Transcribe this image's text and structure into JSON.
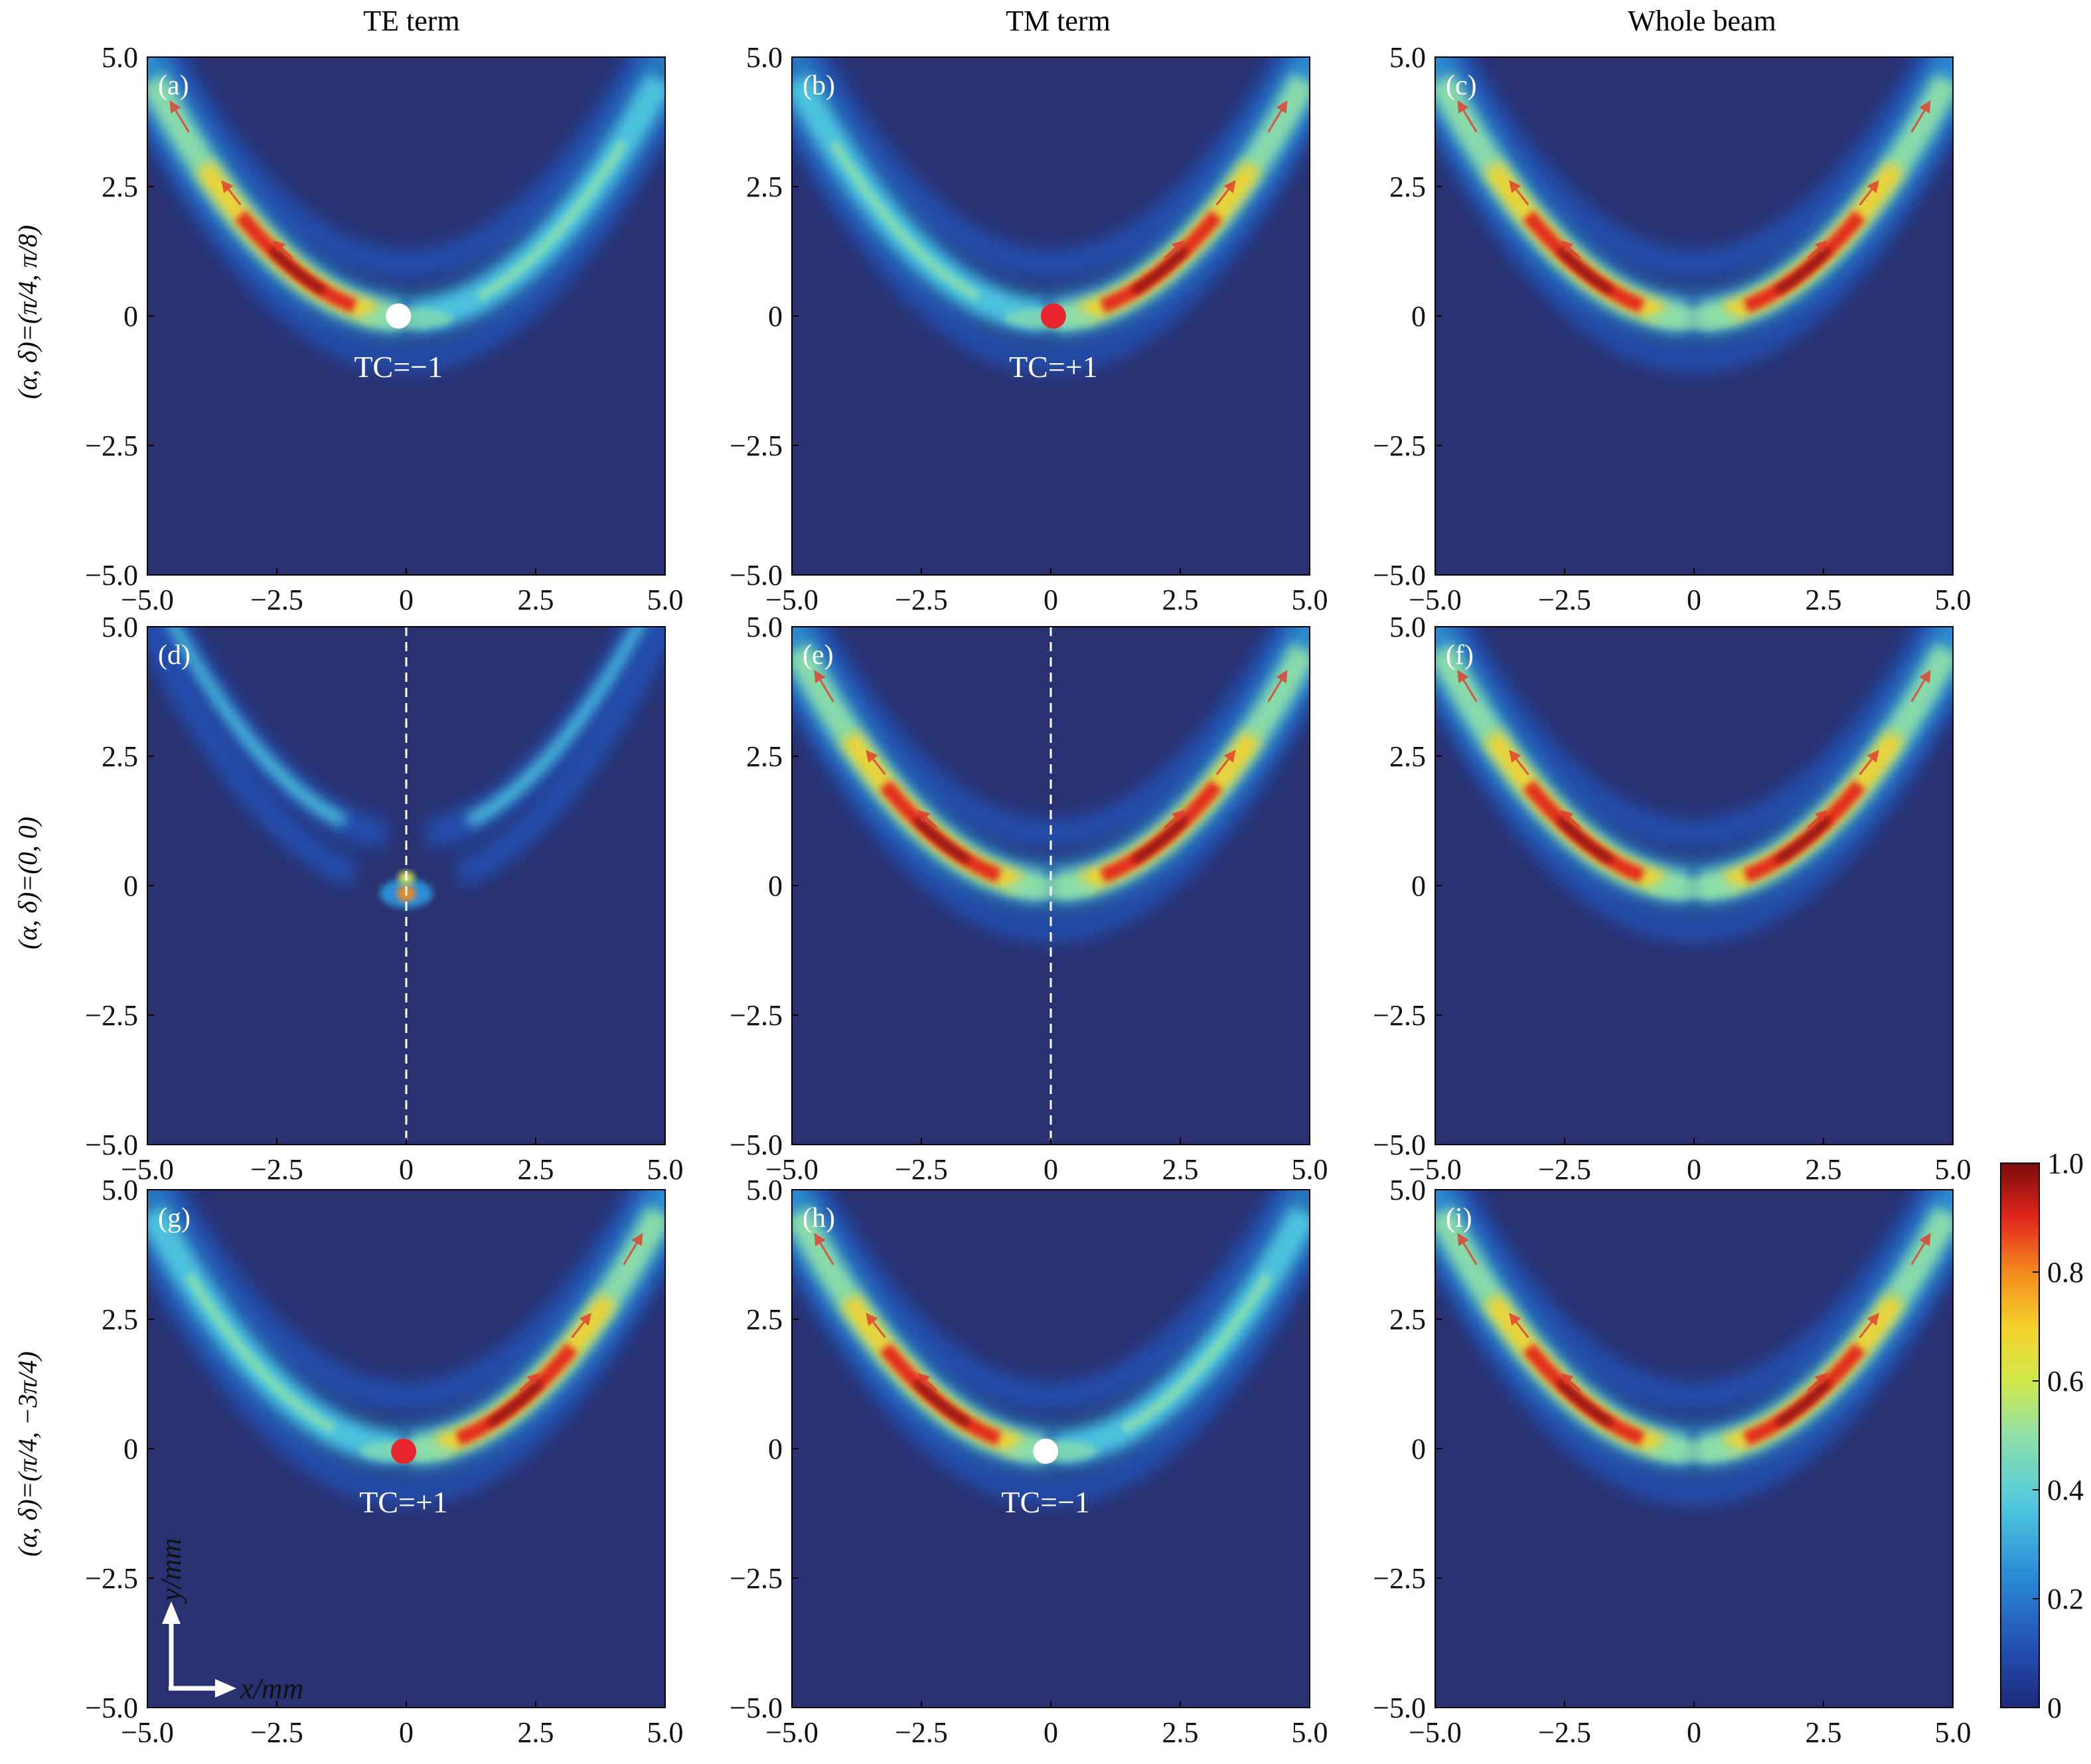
{
  "figure": {
    "column_titles": [
      "TE term",
      "TM term",
      "Whole beam"
    ],
    "row_labels": [
      "(α, δ)=(π/4, π/8)",
      "(α, δ)=(0, 0)",
      "(α, δ)=(π/4, −3π/4)"
    ],
    "axis_hint": {
      "x": "x/mm",
      "y": "y/mm"
    },
    "colors": {
      "background_field": "#2a3170",
      "frame": "#000000",
      "arrow": "#e4392a",
      "marker_red": "#e8242c",
      "marker_white": "#ffffff",
      "dashed_line": "#ffffff",
      "colormap": [
        "#1c2a78",
        "#2453b8",
        "#2a8fd6",
        "#4fc7e0",
        "#8fe0a8",
        "#d2e84a",
        "#f6d229",
        "#f4891f",
        "#e2261c",
        "#7a0c0c"
      ]
    }
  },
  "chart_data": [
    {
      "id": "a",
      "panel_label": "(a)",
      "type": "heatmap",
      "column": "TE term",
      "row": "(α, δ)=(π/4, π/8)",
      "xlim": [
        -5.0,
        5.0
      ],
      "ylim": [
        -5.0,
        5.0
      ],
      "xticks": [
        "−5.0",
        "−2.5",
        "0",
        "2.5",
        "5.0"
      ],
      "yticks": [
        "−5.0",
        "−2.5",
        "0",
        "2.5",
        "5.0"
      ],
      "colorbar_range": [
        0,
        1.0
      ],
      "weights": {
        "left": 1.0,
        "right": 0.45
      },
      "peak": {
        "x": -2.0,
        "y": 0.8
      },
      "singularity": {
        "x": -0.15,
        "y": 0.0,
        "tc": -1,
        "label": "TC=−1",
        "color": "white"
      },
      "dashed_line_x": null
    },
    {
      "id": "b",
      "panel_label": "(b)",
      "type": "heatmap",
      "column": "TM term",
      "row": "(α, δ)=(π/4, π/8)",
      "xlim": [
        -5.0,
        5.0
      ],
      "ylim": [
        -5.0,
        5.0
      ],
      "xticks": [
        "−5.0",
        "−2.5",
        "0",
        "2.5",
        "5.0"
      ],
      "yticks": [
        "−5.0",
        "−2.5",
        "0",
        "2.5",
        "5.0"
      ],
      "colorbar_range": [
        0,
        1.0
      ],
      "weights": {
        "left": 0.45,
        "right": 1.0
      },
      "peak": {
        "x": 2.0,
        "y": 0.8
      },
      "singularity": {
        "x": 0.05,
        "y": 0.0,
        "tc": 1,
        "label": "TC=+1",
        "color": "red"
      },
      "dashed_line_x": null
    },
    {
      "id": "c",
      "panel_label": "(c)",
      "type": "heatmap",
      "column": "Whole beam",
      "row": "(α, δ)=(π/4, π/8)",
      "xlim": [
        -5.0,
        5.0
      ],
      "ylim": [
        -5.0,
        5.0
      ],
      "xticks": [
        "−5.0",
        "−2.5",
        "0",
        "2.5",
        "5.0"
      ],
      "yticks": [
        "−5.0",
        "−2.5",
        "0",
        "2.5",
        "5.0"
      ],
      "colorbar_range": [
        0,
        1.0
      ],
      "weights": {
        "left": 1.0,
        "right": 1.0
      },
      "peak": {
        "x": -2.0,
        "y": 0.8
      },
      "singularity": null,
      "dashed_line_x": null
    },
    {
      "id": "d",
      "panel_label": "(d)",
      "type": "heatmap",
      "column": "TE term",
      "row": "(α, δ)=(0, 0)",
      "xlim": [
        -5.0,
        5.0
      ],
      "ylim": [
        -5.0,
        5.0
      ],
      "xticks": [
        "−5.0",
        "−2.5",
        "0",
        "2.5",
        "5.0"
      ],
      "yticks": [
        "−5.0",
        "−2.5",
        "0",
        "2.5",
        "5.0"
      ],
      "colorbar_range": [
        0,
        1.0
      ],
      "weights": {
        "left": 0.4,
        "right": 0.4
      },
      "peak": {
        "x": 0.0,
        "y": 0.0
      },
      "singularity": null,
      "dashed_line_x": 0
    },
    {
      "id": "e",
      "panel_label": "(e)",
      "type": "heatmap",
      "column": "TM term",
      "row": "(α, δ)=(0, 0)",
      "xlim": [
        -5.0,
        5.0
      ],
      "ylim": [
        -5.0,
        5.0
      ],
      "xticks": [
        "−5.0",
        "−2.5",
        "0",
        "2.5",
        "5.0"
      ],
      "yticks": [
        "−5.0",
        "−2.5",
        "0",
        "2.5",
        "5.0"
      ],
      "colorbar_range": [
        0,
        1.0
      ],
      "weights": {
        "left": 1.0,
        "right": 1.0
      },
      "peak": {
        "x": -2.0,
        "y": 0.6
      },
      "singularity": null,
      "dashed_line_x": 0
    },
    {
      "id": "f",
      "panel_label": "(f)",
      "type": "heatmap",
      "column": "Whole beam",
      "row": "(α, δ)=(0, 0)",
      "xlim": [
        -5.0,
        5.0
      ],
      "ylim": [
        -5.0,
        5.0
      ],
      "xticks": [
        "−5.0",
        "−2.5",
        "0",
        "2.5",
        "5.0"
      ],
      "yticks": [
        "−5.0",
        "−2.5",
        "0",
        "2.5",
        "5.0"
      ],
      "colorbar_range": [
        0,
        1.0
      ],
      "weights": {
        "left": 1.0,
        "right": 1.0
      },
      "peak": {
        "x": -2.0,
        "y": 0.8
      },
      "singularity": null,
      "dashed_line_x": null
    },
    {
      "id": "g",
      "panel_label": "(g)",
      "type": "heatmap",
      "column": "TE term",
      "row": "(α, δ)=(π/4, −3π/4)",
      "xlim": [
        -5.0,
        5.0
      ],
      "ylim": [
        -5.0,
        5.0
      ],
      "xticks": [
        "−5.0",
        "−2.5",
        "0",
        "2.5",
        "5.0"
      ],
      "yticks": [
        "−5.0",
        "−2.5",
        "0",
        "2.5",
        "5.0"
      ],
      "colorbar_range": [
        0,
        1.0
      ],
      "weights": {
        "left": 0.45,
        "right": 1.0
      },
      "peak": {
        "x": 2.0,
        "y": 0.8
      },
      "singularity": {
        "x": -0.05,
        "y": -0.05,
        "tc": 1,
        "label": "TC=+1",
        "color": "red"
      },
      "dashed_line_x": null
    },
    {
      "id": "h",
      "panel_label": "(h)",
      "type": "heatmap",
      "column": "TM term",
      "row": "(α, δ)=(π/4, −3π/4)",
      "xlim": [
        -5.0,
        5.0
      ],
      "ylim": [
        -5.0,
        5.0
      ],
      "xticks": [
        "−5.0",
        "−2.5",
        "0",
        "2.5",
        "5.0"
      ],
      "yticks": [
        "−5.0",
        "−2.5",
        "0",
        "2.5",
        "5.0"
      ],
      "colorbar_range": [
        0,
        1.0
      ],
      "weights": {
        "left": 1.0,
        "right": 0.45
      },
      "peak": {
        "x": -2.0,
        "y": 0.8
      },
      "singularity": {
        "x": -0.1,
        "y": -0.05,
        "tc": -1,
        "label": "TC=−1",
        "color": "white"
      },
      "dashed_line_x": null
    },
    {
      "id": "i",
      "panel_label": "(i)",
      "type": "heatmap",
      "column": "Whole beam",
      "row": "(α, δ)=(π/4, −3π/4)",
      "xlim": [
        -5.0,
        5.0
      ],
      "ylim": [
        -5.0,
        5.0
      ],
      "xticks": [
        "−5.0",
        "−2.5",
        "0",
        "2.5",
        "5.0"
      ],
      "yticks": [
        "−5.0",
        "−2.5",
        "0",
        "2.5",
        "5.0"
      ],
      "colorbar_range": [
        0,
        1.0
      ],
      "weights": {
        "left": 1.0,
        "right": 1.0
      },
      "peak": {
        "x": -2.0,
        "y": 0.8
      },
      "singularity": null,
      "dashed_line_x": null
    }
  ],
  "colorbar": {
    "min": 0,
    "max": 1.0,
    "ticks": [
      {
        "value": 1.0,
        "label": "1.0"
      },
      {
        "value": 0.8,
        "label": "0.8"
      },
      {
        "value": 0.6,
        "label": "0.6"
      },
      {
        "value": 0.4,
        "label": "0.4"
      },
      {
        "value": 0.2,
        "label": "0.2"
      },
      {
        "value": 0,
        "label": "0"
      }
    ]
  }
}
